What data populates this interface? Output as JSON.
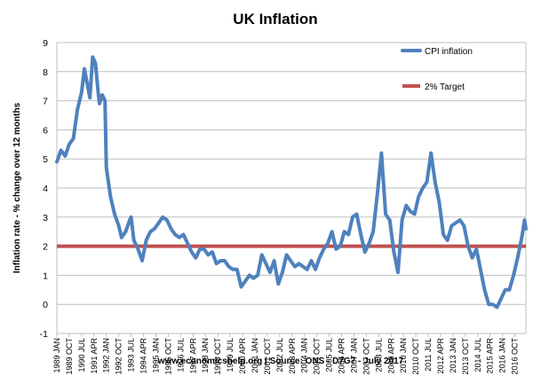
{
  "chart_data": {
    "type": "line",
    "title": "UK Inflation",
    "ylabel": "Inflation rate  - % change over 12 months",
    "xlabel": "",
    "source": "www.economicshelp.org | Source: ONS - D7G7  - July 2017",
    "ylim": [
      -1,
      9
    ],
    "yticks": [
      "-1",
      "0",
      "1",
      "2",
      "3",
      "4",
      "5",
      "6",
      "7",
      "8",
      "9"
    ],
    "grid": "horizontal",
    "legend_position": "top-right",
    "xlim": [
      "1989-01",
      "2017-06"
    ],
    "xticks": [
      "1989 JAN",
      "1989 OCT",
      "1990 JUL",
      "1991 APR",
      "1992 JAN",
      "1992 OCT",
      "1993 JUL",
      "1994 APR",
      "1995 JAN",
      "1995 OCT",
      "1996 JUL",
      "1997 APR",
      "1998 JAN",
      "1998 OCT",
      "1999 JUL",
      "2000 APR",
      "2001 JAN",
      "2001 OCT",
      "2002 JUL",
      "2003 APR",
      "2004 JAN",
      "2004 OCT",
      "2005 JUL",
      "2006 APR",
      "2007 JAN",
      "2007 OCT",
      "2008 JUL",
      "2009 APR",
      "2010 JAN",
      "2010 OCT",
      "2011 JUL",
      "2012 APR",
      "2013 JAN",
      "2013 OCT",
      "2014 JUL",
      "2015 APR",
      "2016 JAN",
      "2016 OCT"
    ],
    "series": [
      {
        "name": "CPI inflation",
        "color": "#4F81BD",
        "points": [
          [
            "1989-01",
            4.9
          ],
          [
            "1989-04",
            5.3
          ],
          [
            "1989-07",
            5.1
          ],
          [
            "1989-10",
            5.5
          ],
          [
            "1990-01",
            5.7
          ],
          [
            "1990-04",
            6.7
          ],
          [
            "1990-07",
            7.3
          ],
          [
            "1990-09",
            8.1
          ],
          [
            "1990-11",
            7.6
          ],
          [
            "1991-01",
            7.1
          ],
          [
            "1991-03",
            8.5
          ],
          [
            "1991-05",
            8.3
          ],
          [
            "1991-07",
            7.3
          ],
          [
            "1991-08",
            6.9
          ],
          [
            "1991-10",
            7.2
          ],
          [
            "1991-12",
            7.0
          ],
          [
            "1992-01",
            4.7
          ],
          [
            "1992-04",
            3.7
          ],
          [
            "1992-07",
            3.1
          ],
          [
            "1992-10",
            2.7
          ],
          [
            "1992-12",
            2.3
          ],
          [
            "1993-03",
            2.5
          ],
          [
            "1993-06",
            2.9
          ],
          [
            "1993-07",
            3.0
          ],
          [
            "1993-09",
            2.2
          ],
          [
            "1993-12",
            1.9
          ],
          [
            "1994-03",
            1.5
          ],
          [
            "1994-06",
            2.2
          ],
          [
            "1994-09",
            2.5
          ],
          [
            "1994-12",
            2.6
          ],
          [
            "1995-03",
            2.8
          ],
          [
            "1995-06",
            3.0
          ],
          [
            "1995-09",
            2.9
          ],
          [
            "1995-12",
            2.6
          ],
          [
            "1996-03",
            2.4
          ],
          [
            "1996-06",
            2.3
          ],
          [
            "1996-09",
            2.4
          ],
          [
            "1996-12",
            2.1
          ],
          [
            "1997-03",
            1.8
          ],
          [
            "1997-06",
            1.6
          ],
          [
            "1997-09",
            1.9
          ],
          [
            "1997-12",
            1.9
          ],
          [
            "1998-03",
            1.7
          ],
          [
            "1998-06",
            1.8
          ],
          [
            "1998-09",
            1.4
          ],
          [
            "1998-12",
            1.5
          ],
          [
            "1999-03",
            1.5
          ],
          [
            "1999-06",
            1.3
          ],
          [
            "1999-09",
            1.2
          ],
          [
            "1999-12",
            1.2
          ],
          [
            "2000-03",
            0.6
          ],
          [
            "2000-06",
            0.8
          ],
          [
            "2000-09",
            1.0
          ],
          [
            "2000-12",
            0.9
          ],
          [
            "2001-03",
            1.0
          ],
          [
            "2001-06",
            1.7
          ],
          [
            "2001-09",
            1.4
          ],
          [
            "2001-12",
            1.1
          ],
          [
            "2002-03",
            1.5
          ],
          [
            "2002-06",
            0.7
          ],
          [
            "2002-09",
            1.1
          ],
          [
            "2002-12",
            1.7
          ],
          [
            "2003-03",
            1.5
          ],
          [
            "2003-06",
            1.3
          ],
          [
            "2003-09",
            1.4
          ],
          [
            "2003-12",
            1.3
          ],
          [
            "2004-03",
            1.2
          ],
          [
            "2004-06",
            1.5
          ],
          [
            "2004-09",
            1.2
          ],
          [
            "2004-12",
            1.6
          ],
          [
            "2005-03",
            1.9
          ],
          [
            "2005-06",
            2.1
          ],
          [
            "2005-09",
            2.5
          ],
          [
            "2005-12",
            1.9
          ],
          [
            "2006-03",
            2.0
          ],
          [
            "2006-06",
            2.5
          ],
          [
            "2006-09",
            2.4
          ],
          [
            "2006-12",
            3.0
          ],
          [
            "2007-03",
            3.1
          ],
          [
            "2007-06",
            2.4
          ],
          [
            "2007-09",
            1.8
          ],
          [
            "2007-12",
            2.1
          ],
          [
            "2008-03",
            2.5
          ],
          [
            "2008-06",
            3.8
          ],
          [
            "2008-09",
            5.2
          ],
          [
            "2008-12",
            3.1
          ],
          [
            "2009-03",
            2.9
          ],
          [
            "2009-06",
            1.8
          ],
          [
            "2009-09",
            1.1
          ],
          [
            "2009-12",
            2.9
          ],
          [
            "2010-03",
            3.4
          ],
          [
            "2010-06",
            3.2
          ],
          [
            "2010-09",
            3.1
          ],
          [
            "2010-12",
            3.7
          ],
          [
            "2011-03",
            4.0
          ],
          [
            "2011-06",
            4.2
          ],
          [
            "2011-09",
            5.2
          ],
          [
            "2011-12",
            4.2
          ],
          [
            "2012-03",
            3.5
          ],
          [
            "2012-06",
            2.4
          ],
          [
            "2012-09",
            2.2
          ],
          [
            "2012-12",
            2.7
          ],
          [
            "2013-03",
            2.8
          ],
          [
            "2013-06",
            2.9
          ],
          [
            "2013-09",
            2.7
          ],
          [
            "2013-12",
            2.0
          ],
          [
            "2014-03",
            1.6
          ],
          [
            "2014-06",
            1.9
          ],
          [
            "2014-09",
            1.2
          ],
          [
            "2014-12",
            0.5
          ],
          [
            "2015-03",
            0.0
          ],
          [
            "2015-06",
            0.0
          ],
          [
            "2015-09",
            -0.1
          ],
          [
            "2015-12",
            0.2
          ],
          [
            "2016-03",
            0.5
          ],
          [
            "2016-06",
            0.5
          ],
          [
            "2016-09",
            1.0
          ],
          [
            "2016-12",
            1.6
          ],
          [
            "2017-03",
            2.3
          ],
          [
            "2017-05",
            2.9
          ],
          [
            "2017-06",
            2.6
          ]
        ]
      },
      {
        "name": "2% Target",
        "color": "#C0504D",
        "points": [
          [
            "1989-01",
            2.0
          ],
          [
            "2017-06",
            2.0
          ]
        ]
      }
    ]
  }
}
